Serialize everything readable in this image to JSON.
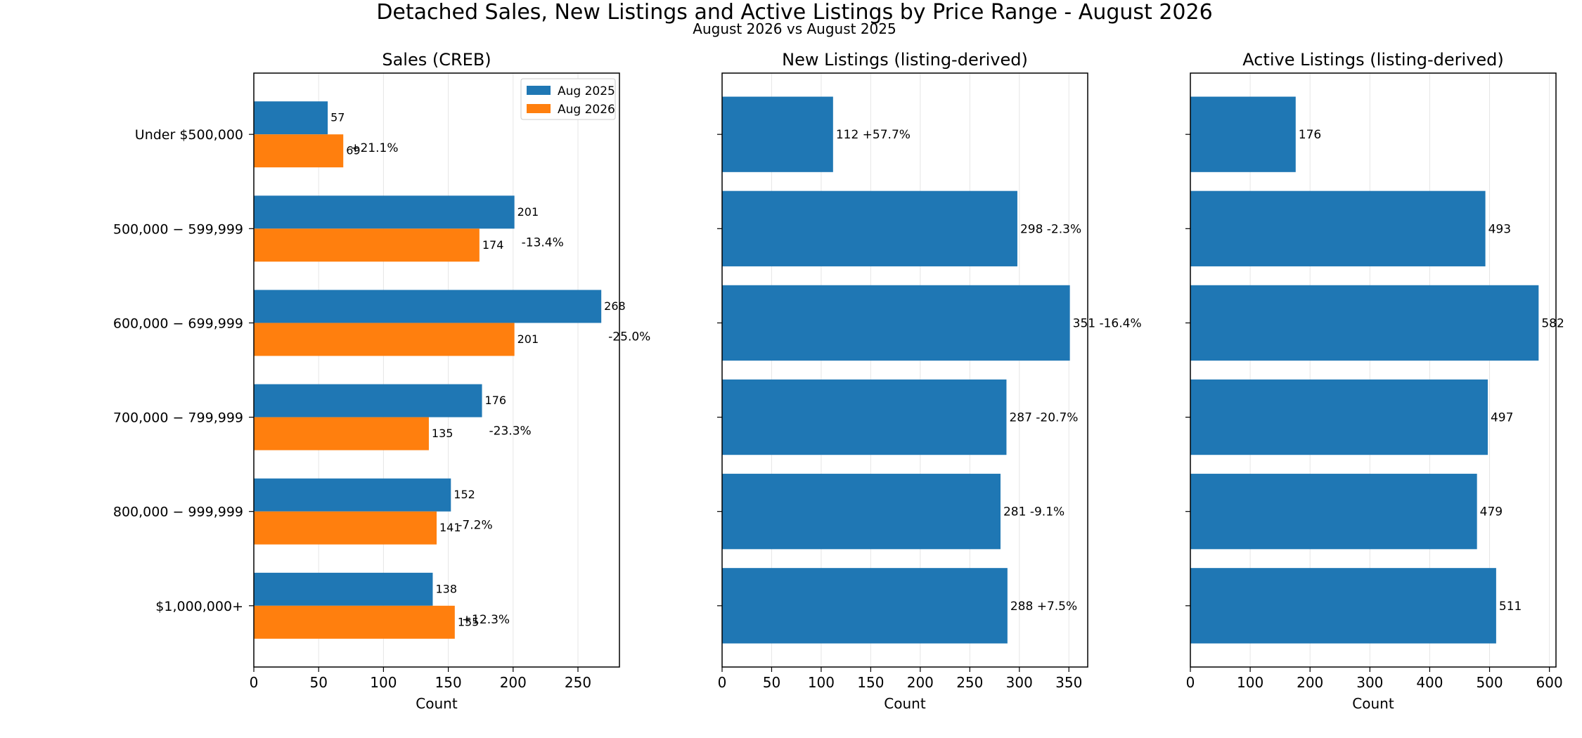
{
  "title": "Detached Sales, New Listings and Active Listings by Price Range - August 2026",
  "subtitle": "August 2026 vs August 2025",
  "colors": {
    "aug2025": "#1f77b4",
    "aug2026": "#ff7f0e",
    "grid": "#e6e6e6"
  },
  "chart_data": [
    {
      "type": "bar",
      "orientation": "horizontal",
      "title": "Sales (CREB)",
      "xlabel": "Count",
      "ylabel": "",
      "xlim": [
        0,
        282
      ],
      "xticks": [
        0,
        50,
        100,
        150,
        200,
        250
      ],
      "grid": "vertical",
      "legend": "upper-right",
      "categories": [
        "Under $500,000",
        "500,000 − 599,999",
        "600,000 − 699,999",
        "700,000 − 799,999",
        "800,000 − 999,999",
        "$1,000,000+"
      ],
      "series": [
        {
          "name": "Aug 2025",
          "values": [
            57,
            201,
            268,
            176,
            152,
            138
          ]
        },
        {
          "name": "Aug 2026",
          "values": [
            69,
            174,
            201,
            135,
            141,
            155
          ]
        }
      ],
      "annotations": [
        "+21.1%",
        "-13.4%",
        "-25.0%",
        "-23.3%",
        "-7.2%",
        "+12.3%"
      ]
    },
    {
      "type": "bar",
      "orientation": "horizontal",
      "title": "New Listings (listing-derived)",
      "xlabel": "Count",
      "ylabel": "",
      "xlim": [
        0,
        369
      ],
      "xticks": [
        0,
        50,
        100,
        150,
        200,
        250,
        300,
        350
      ],
      "grid": "vertical",
      "categories": [
        "Under $500,000",
        "500,000 − 599,999",
        "600,000 − 699,999",
        "700,000 − 799,999",
        "800,000 − 999,999",
        "$1,000,000+"
      ],
      "values": [
        112,
        298,
        351,
        287,
        281,
        288
      ],
      "annotations": [
        "112  +57.7%",
        "298  -2.3%",
        "351  -16.4%",
        "287  -20.7%",
        "281  -9.1%",
        "288  +7.5%"
      ]
    },
    {
      "type": "bar",
      "orientation": "horizontal",
      "title": "Active Listings (listing-derived)",
      "xlabel": "Count",
      "ylabel": "",
      "xlim": [
        0,
        611
      ],
      "xticks": [
        0,
        100,
        200,
        300,
        400,
        500,
        600
      ],
      "grid": "vertical",
      "categories": [
        "Under $500,000",
        "500,000 − 599,999",
        "600,000 − 699,999",
        "700,000 − 799,999",
        "800,000 − 999,999",
        "$1,000,000+"
      ],
      "values": [
        176,
        493,
        582,
        497,
        479,
        511
      ],
      "annotations": [
        "176",
        "493",
        "582",
        "497",
        "479",
        "511"
      ]
    }
  ]
}
